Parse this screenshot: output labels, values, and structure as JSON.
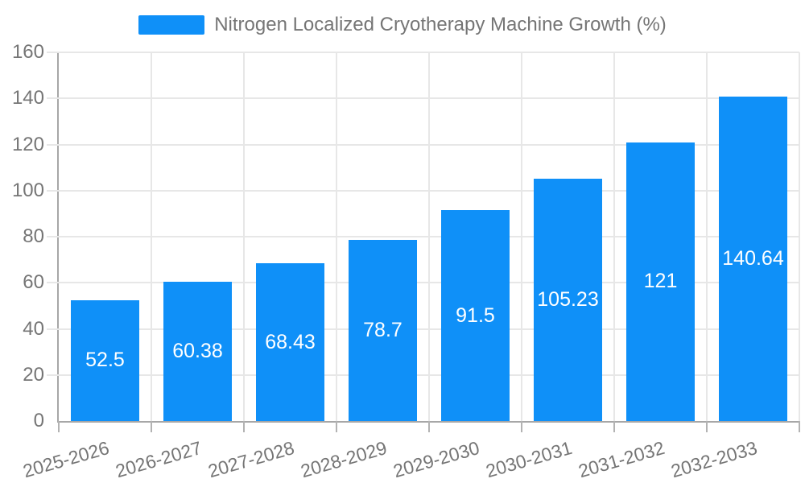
{
  "legend": {
    "label": "Nitrogen Localized Cryotherapy Machine Growth (%)"
  },
  "colors": {
    "bar": "#0f90f8",
    "grid": "#e7e7e7",
    "axis": "#a7a7a7",
    "tick": "#b3b3b3",
    "tick_text": "#757575",
    "value_text": "#ffffff"
  },
  "chart_data": {
    "type": "bar",
    "title": "Nitrogen Localized Cryotherapy Machine Growth (%)",
    "xlabel": "",
    "ylabel": "",
    "categories": [
      "2025-2026",
      "2026-2027",
      "2027-2028",
      "2028-2029",
      "2029-2030",
      "2030-2031",
      "2031-2032",
      "2032-2033"
    ],
    "values": [
      52.5,
      60.38,
      68.43,
      78.7,
      91.5,
      105.23,
      121,
      140.64
    ],
    "value_labels": [
      "52.5",
      "60.38",
      "68.43",
      "78.7",
      "91.5",
      "105.23",
      "121",
      "140.64"
    ],
    "ylim": [
      0,
      160
    ],
    "ytick_step": 20,
    "ytick_labels": [
      "0",
      "20",
      "40",
      "60",
      "80",
      "100",
      "120",
      "140",
      "160"
    ],
    "grid": true,
    "legend_position": "top",
    "value_label_position": "center-inside",
    "xtick_rotation_deg": -16
  }
}
